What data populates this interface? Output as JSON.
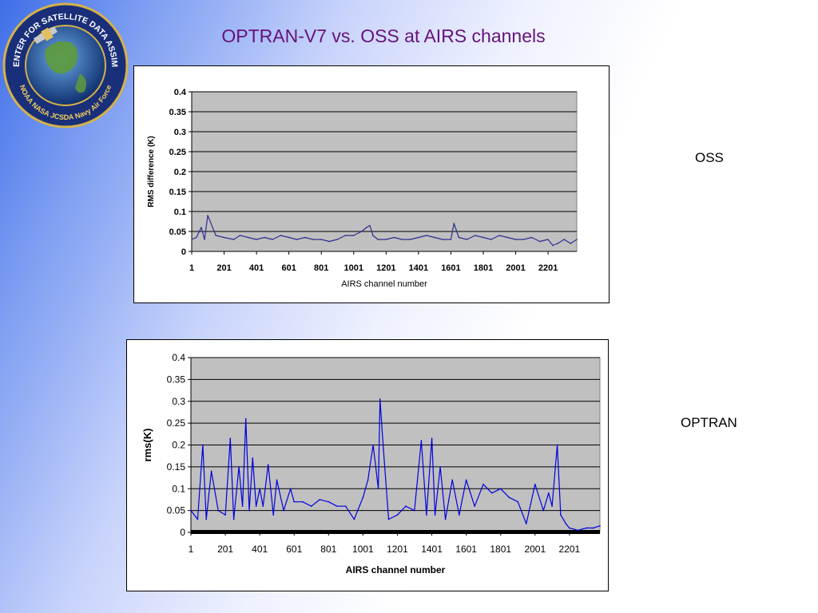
{
  "slide": {
    "title": "OPTRAN-V7 vs. OSS at AIRS channels",
    "label_oss": "OSS",
    "label_optran": "OPTRAN"
  },
  "logo": {
    "ring_text": "JOINT CENTER FOR SATELLITE DATA ASSIMILATION",
    "bottom_text": "NOAA  NASA  JCSDA  Navy  Air Force"
  },
  "chart_data": [
    {
      "type": "line",
      "xlabel": "AIRS channel number",
      "ylabel": "RMS difference (K)",
      "xlim": [
        1,
        2378
      ],
      "ylim": [
        0,
        0.4
      ],
      "yticks": [
        "0",
        "0.05",
        "0.1",
        "0.15",
        "0.2",
        "0.25",
        "0.3",
        "0.35",
        "0.4"
      ],
      "xticks": [
        "1",
        "201",
        "401",
        "601",
        "801",
        "1001",
        "1201",
        "1401",
        "1601",
        "1801",
        "2001",
        "2201"
      ],
      "line_color": "#2d2d90",
      "plot_bg": "#c0c0c0",
      "grid": true,
      "x": [
        1,
        30,
        60,
        80,
        100,
        150,
        200,
        260,
        300,
        350,
        400,
        450,
        500,
        550,
        601,
        650,
        700,
        750,
        801,
        850,
        900,
        950,
        1001,
        1050,
        1080,
        1100,
        1120,
        1150,
        1201,
        1250,
        1300,
        1350,
        1401,
        1450,
        1500,
        1550,
        1601,
        1620,
        1650,
        1700,
        1750,
        1801,
        1850,
        1900,
        1950,
        2001,
        2050,
        2100,
        2150,
        2200,
        2230,
        2260,
        2300,
        2340,
        2378
      ],
      "y": [
        0.03,
        0.035,
        0.06,
        0.03,
        0.09,
        0.04,
        0.035,
        0.03,
        0.04,
        0.035,
        0.03,
        0.035,
        0.03,
        0.04,
        0.035,
        0.03,
        0.035,
        0.03,
        0.03,
        0.025,
        0.03,
        0.04,
        0.04,
        0.05,
        0.06,
        0.065,
        0.04,
        0.03,
        0.03,
        0.035,
        0.03,
        0.03,
        0.035,
        0.04,
        0.035,
        0.03,
        0.03,
        0.07,
        0.035,
        0.03,
        0.04,
        0.035,
        0.03,
        0.04,
        0.035,
        0.03,
        0.03,
        0.035,
        0.025,
        0.03,
        0.015,
        0.02,
        0.03,
        0.02,
        0.03
      ]
    },
    {
      "type": "line",
      "xlabel": "AIRS channel number",
      "ylabel": "rms(K)",
      "xlim": [
        1,
        2378
      ],
      "ylim": [
        0,
        0.4
      ],
      "yticks": [
        "0",
        "0.05",
        "0.1",
        "0.15",
        "0.2",
        "0.25",
        "0.3",
        "0.35",
        "0.4"
      ],
      "xticks": [
        "1",
        "201",
        "401",
        "601",
        "801",
        "1001",
        "1201",
        "1401",
        "1601",
        "1801",
        "2001",
        "2201"
      ],
      "line_color": "#0000dd",
      "plot_bg": "#c0c0c0",
      "grid": true,
      "x": [
        1,
        40,
        70,
        90,
        120,
        160,
        201,
        230,
        250,
        280,
        301,
        320,
        340,
        360,
        380,
        401,
        420,
        450,
        480,
        500,
        540,
        580,
        601,
        650,
        701,
        750,
        801,
        850,
        900,
        950,
        1001,
        1030,
        1060,
        1090,
        1100,
        1120,
        1150,
        1201,
        1250,
        1300,
        1340,
        1370,
        1401,
        1420,
        1450,
        1480,
        1520,
        1560,
        1601,
        1650,
        1700,
        1750,
        1801,
        1850,
        1901,
        1950,
        2001,
        2050,
        2080,
        2100,
        2130,
        2150,
        2180,
        2200,
        2250,
        2300,
        2340,
        2378
      ],
      "y": [
        0.05,
        0.03,
        0.2,
        0.03,
        0.14,
        0.05,
        0.04,
        0.215,
        0.03,
        0.15,
        0.06,
        0.26,
        0.05,
        0.17,
        0.06,
        0.1,
        0.06,
        0.155,
        0.04,
        0.12,
        0.05,
        0.1,
        0.07,
        0.07,
        0.06,
        0.075,
        0.07,
        0.06,
        0.06,
        0.03,
        0.08,
        0.12,
        0.2,
        0.1,
        0.305,
        0.19,
        0.03,
        0.04,
        0.06,
        0.05,
        0.21,
        0.04,
        0.215,
        0.04,
        0.15,
        0.03,
        0.12,
        0.04,
        0.12,
        0.06,
        0.11,
        0.09,
        0.1,
        0.08,
        0.07,
        0.02,
        0.11,
        0.05,
        0.09,
        0.06,
        0.2,
        0.04,
        0.02,
        0.01,
        0.005,
        0.01,
        0.01,
        0.015
      ]
    }
  ]
}
